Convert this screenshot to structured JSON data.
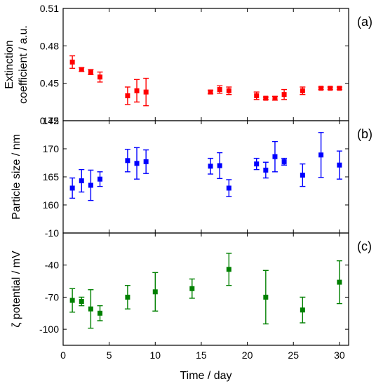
{
  "chart_data": [
    {
      "type": "scatter",
      "panel_label": "(a)",
      "ylabel_lines": [
        "Extinction",
        "coefficient / a.u."
      ],
      "ylim": [
        0.42,
        0.51
      ],
      "yticks": [
        0.42,
        0.45,
        0.48,
        0.51
      ],
      "ytick_labels": [
        "0.42",
        "0.45",
        "0.48",
        "0.51"
      ],
      "xlim": [
        0,
        31
      ],
      "color": "#ff0000",
      "series": [
        {
          "x": [
            1,
            2,
            3,
            4,
            7,
            8,
            9,
            16,
            17,
            18,
            21,
            22,
            23,
            24,
            26,
            28,
            29,
            30
          ],
          "y": [
            0.467,
            0.461,
            0.459,
            0.455,
            0.44,
            0.444,
            0.443,
            0.443,
            0.445,
            0.444,
            0.44,
            0.438,
            0.438,
            0.441,
            0.444,
            0.446,
            0.446,
            0.446
          ],
          "err": [
            0.005,
            0.0015,
            0.002,
            0.004,
            0.007,
            0.009,
            0.011,
            0.0015,
            0.003,
            0.003,
            0.003,
            0.001,
            0.0015,
            0.004,
            0.003,
            0.001,
            0.001,
            0.001
          ]
        }
      ]
    },
    {
      "type": "scatter",
      "panel_label": "(b)",
      "ylabel_lines": [
        "Particle size / nm"
      ],
      "ylim": [
        155,
        175
      ],
      "yticks": [
        160,
        165,
        170,
        175
      ],
      "ytick_labels": [
        "160",
        "165",
        "170",
        "175"
      ],
      "xlim": [
        0,
        31
      ],
      "color": "#0000ff",
      "series": [
        {
          "x": [
            1,
            2,
            3,
            4,
            7,
            8,
            9,
            16,
            17,
            18,
            21,
            22,
            23,
            24,
            26,
            28,
            30
          ],
          "y": [
            163.0,
            164.3,
            163.5,
            164.6,
            167.9,
            167.4,
            167.7,
            166.9,
            167.0,
            163.0,
            167.3,
            166.2,
            168.6,
            167.7,
            165.3,
            168.9,
            167.1
          ],
          "err": [
            1.8,
            2.0,
            2.7,
            1.3,
            2.0,
            2.8,
            2.1,
            1.4,
            2.3,
            1.5,
            1.0,
            1.4,
            2.7,
            0.6,
            2.0,
            4.0,
            2.5
          ]
        }
      ]
    },
    {
      "type": "scatter",
      "panel_label": "(c)",
      "ylabel_lines": [
        "ζ potential / mV"
      ],
      "ylim": [
        -115,
        -10
      ],
      "yticks": [
        -100,
        -70,
        -40,
        -10
      ],
      "ytick_labels": [
        "-100",
        "-70",
        "-40",
        "-10"
      ],
      "xlim": [
        0,
        31
      ],
      "xticks": [
        0,
        5,
        10,
        15,
        20,
        25,
        30
      ],
      "xtick_labels": [
        "0",
        "5",
        "10",
        "15",
        "20",
        "25",
        "30"
      ],
      "xlabel": "Time / day",
      "color": "#008000",
      "series": [
        {
          "x": [
            1,
            2,
            3,
            4,
            7,
            10,
            14,
            18,
            22,
            26,
            30
          ],
          "y": [
            -73,
            -74,
            -81,
            -85,
            -70,
            -65,
            -62,
            -44,
            -70,
            -82,
            -56
          ],
          "err": [
            11,
            4,
            18,
            7,
            11,
            18,
            9,
            15,
            25,
            12,
            20
          ]
        }
      ]
    }
  ]
}
